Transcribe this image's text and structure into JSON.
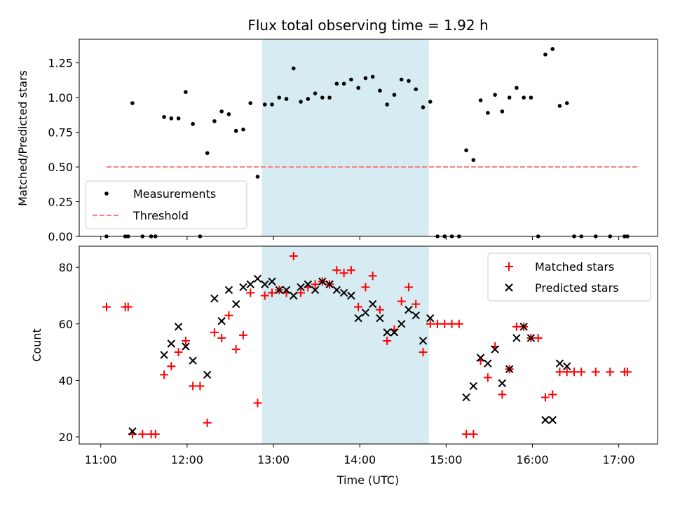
{
  "chart_data": [
    {
      "type": "scatter",
      "title": "Flux total observing time = 1.92 h",
      "xlabel": "",
      "ylabel": "Matched/Predicted stars",
      "ylim": [
        0,
        1.42
      ],
      "yticks": [
        0.0,
        0.25,
        0.5,
        0.75,
        1.0,
        1.25
      ],
      "ytick_labels": [
        "0.00",
        "0.25",
        "0.50",
        "0.75",
        "1.00",
        "1.25"
      ],
      "xlim": [
        "10:45",
        "17:27"
      ],
      "highlight_span": [
        "12:52",
        "14:48"
      ],
      "highlight_color": "#add8e6",
      "legend": {
        "position": "lower-left",
        "entries": [
          {
            "label": "Measurements",
            "marker": "dot",
            "color": "#000000"
          },
          {
            "label": "Threshold",
            "marker": "dashed-line",
            "color": "#ff7f7f"
          }
        ]
      },
      "threshold": {
        "name": "Threshold",
        "x": [
          "11:04",
          "17:13"
        ],
        "y": 0.5,
        "color": "#ff7f7f"
      },
      "series": [
        {
          "name": "Measurements",
          "color": "#000000",
          "points": [
            [
              "11:04",
              0.0
            ],
            [
              "11:17",
              0.0
            ],
            [
              "11:19",
              0.0
            ],
            [
              "11:22",
              0.96
            ],
            [
              "11:29",
              0.0
            ],
            [
              "11:35",
              0.0
            ],
            [
              "11:38",
              0.0
            ],
            [
              "11:44",
              0.86
            ],
            [
              "11:49",
              0.85
            ],
            [
              "11:54",
              0.85
            ],
            [
              "11:59",
              1.04
            ],
            [
              "12:04",
              0.81
            ],
            [
              "12:09",
              0.0
            ],
            [
              "12:14",
              0.6
            ],
            [
              "12:19",
              0.83
            ],
            [
              "12:24",
              0.9
            ],
            [
              "12:29",
              0.88
            ],
            [
              "12:34",
              0.76
            ],
            [
              "12:39",
              0.77
            ],
            [
              "12:44",
              0.96
            ],
            [
              "12:49",
              0.43
            ],
            [
              "12:54",
              0.95
            ],
            [
              "12:59",
              0.95
            ],
            [
              "13:04",
              1.0
            ],
            [
              "13:09",
              0.99
            ],
            [
              "13:14",
              1.21
            ],
            [
              "13:19",
              0.97
            ],
            [
              "13:24",
              0.99
            ],
            [
              "13:29",
              1.03
            ],
            [
              "13:34",
              1.0
            ],
            [
              "13:39",
              1.0
            ],
            [
              "13:44",
              1.1
            ],
            [
              "13:49",
              1.1
            ],
            [
              "13:54",
              1.13
            ],
            [
              "13:59",
              1.07
            ],
            [
              "14:04",
              1.14
            ],
            [
              "14:09",
              1.15
            ],
            [
              "14:14",
              1.05
            ],
            [
              "14:19",
              0.95
            ],
            [
              "14:24",
              1.02
            ],
            [
              "14:29",
              1.13
            ],
            [
              "14:34",
              1.12
            ],
            [
              "14:39",
              1.06
            ],
            [
              "14:44",
              0.93
            ],
            [
              "14:49",
              0.97
            ],
            [
              "14:54",
              0.0
            ],
            [
              "14:59",
              0.0
            ],
            [
              "15:04",
              0.0
            ],
            [
              "15:09",
              0.0
            ],
            [
              "15:14",
              0.62
            ],
            [
              "15:19",
              0.55
            ],
            [
              "15:24",
              0.98
            ],
            [
              "15:29",
              0.89
            ],
            [
              "15:34",
              1.02
            ],
            [
              "15:39",
              0.9
            ],
            [
              "15:44",
              1.0
            ],
            [
              "15:49",
              1.07
            ],
            [
              "15:54",
              1.0
            ],
            [
              "15:59",
              1.0
            ],
            [
              "16:04",
              0.0
            ],
            [
              "16:09",
              1.31
            ],
            [
              "16:14",
              1.35
            ],
            [
              "16:19",
              0.94
            ],
            [
              "16:24",
              0.96
            ],
            [
              "16:29",
              0.0
            ],
            [
              "16:34",
              0.0
            ],
            [
              "16:44",
              0.0
            ],
            [
              "16:54",
              0.0
            ],
            [
              "17:04",
              0.0
            ],
            [
              "17:06",
              0.0
            ]
          ]
        }
      ]
    },
    {
      "type": "scatter",
      "title": "",
      "xlabel": "Time (UTC)",
      "ylabel": "Count",
      "ylim": [
        17.5,
        87.5
      ],
      "yticks": [
        20,
        40,
        60,
        80
      ],
      "ytick_labels": [
        "20",
        "40",
        "60",
        "80"
      ],
      "xlim": [
        "10:45",
        "17:27"
      ],
      "xticks": [
        "11:00",
        "12:00",
        "13:00",
        "14:00",
        "15:00",
        "16:00",
        "17:00"
      ],
      "highlight_span": [
        "12:52",
        "14:48"
      ],
      "highlight_color": "#add8e6",
      "legend": {
        "position": "top-right",
        "entries": [
          {
            "label": "Matched stars",
            "marker": "plus",
            "color": "#ff0000"
          },
          {
            "label": "Predicted stars",
            "marker": "x",
            "color": "#000000"
          }
        ]
      },
      "series": [
        {
          "name": "Matched stars",
          "marker": "plus",
          "color": "#ff0000",
          "points": [
            [
              "11:04",
              66
            ],
            [
              "11:17",
              66
            ],
            [
              "11:19",
              66
            ],
            [
              "11:22",
              21
            ],
            [
              "11:29",
              21
            ],
            [
              "11:35",
              21
            ],
            [
              "11:38",
              21
            ],
            [
              "11:44",
              42
            ],
            [
              "11:49",
              45
            ],
            [
              "11:54",
              50
            ],
            [
              "11:59",
              54
            ],
            [
              "12:04",
              38
            ],
            [
              "12:09",
              38
            ],
            [
              "12:14",
              25
            ],
            [
              "12:19",
              57
            ],
            [
              "12:24",
              55
            ],
            [
              "12:29",
              63
            ],
            [
              "12:34",
              51
            ],
            [
              "12:39",
              56
            ],
            [
              "12:44",
              71
            ],
            [
              "12:49",
              32
            ],
            [
              "12:54",
              70
            ],
            [
              "12:59",
              71
            ],
            [
              "13:04",
              72
            ],
            [
              "13:09",
              71
            ],
            [
              "13:14",
              84
            ],
            [
              "13:19",
              71
            ],
            [
              "13:24",
              73
            ],
            [
              "13:29",
              74
            ],
            [
              "13:34",
              75
            ],
            [
              "13:39",
              74
            ],
            [
              "13:44",
              79
            ],
            [
              "13:49",
              78
            ],
            [
              "13:54",
              79
            ],
            [
              "13:59",
              66
            ],
            [
              "14:04",
              73
            ],
            [
              "14:09",
              77
            ],
            [
              "14:14",
              65
            ],
            [
              "14:19",
              54
            ],
            [
              "14:24",
              58
            ],
            [
              "14:29",
              68
            ],
            [
              "14:34",
              73
            ],
            [
              "14:39",
              67
            ],
            [
              "14:44",
              50
            ],
            [
              "14:49",
              60
            ],
            [
              "14:54",
              60
            ],
            [
              "14:59",
              60
            ],
            [
              "15:04",
              60
            ],
            [
              "15:09",
              60
            ],
            [
              "15:14",
              21
            ],
            [
              "15:19",
              21
            ],
            [
              "15:24",
              47
            ],
            [
              "15:29",
              41
            ],
            [
              "15:34",
              52
            ],
            [
              "15:39",
              35
            ],
            [
              "15:44",
              44
            ],
            [
              "15:49",
              59
            ],
            [
              "15:54",
              59
            ],
            [
              "15:59",
              55
            ],
            [
              "16:04",
              55
            ],
            [
              "16:09",
              34
            ],
            [
              "16:14",
              35
            ],
            [
              "16:19",
              43
            ],
            [
              "16:24",
              43
            ],
            [
              "16:29",
              43
            ],
            [
              "16:34",
              43
            ],
            [
              "16:44",
              43
            ],
            [
              "16:54",
              43
            ],
            [
              "17:04",
              43
            ],
            [
              "17:06",
              43
            ]
          ]
        },
        {
          "name": "Predicted stars",
          "marker": "x",
          "color": "#000000",
          "points": [
            [
              "11:22",
              22
            ],
            [
              "11:44",
              49
            ],
            [
              "11:49",
              53
            ],
            [
              "11:54",
              59
            ],
            [
              "11:59",
              52
            ],
            [
              "12:04",
              47
            ],
            [
              "12:14",
              42
            ],
            [
              "12:19",
              69
            ],
            [
              "12:24",
              61
            ],
            [
              "12:29",
              72
            ],
            [
              "12:34",
              67
            ],
            [
              "12:39",
              73
            ],
            [
              "12:44",
              74
            ],
            [
              "12:49",
              76
            ],
            [
              "12:54",
              74
            ],
            [
              "12:59",
              75
            ],
            [
              "13:04",
              72
            ],
            [
              "13:09",
              72
            ],
            [
              "13:14",
              70
            ],
            [
              "13:19",
              73
            ],
            [
              "13:24",
              74
            ],
            [
              "13:29",
              72
            ],
            [
              "13:34",
              75
            ],
            [
              "13:39",
              74
            ],
            [
              "13:44",
              72
            ],
            [
              "13:49",
              71
            ],
            [
              "13:54",
              70
            ],
            [
              "13:59",
              62
            ],
            [
              "14:04",
              64
            ],
            [
              "14:09",
              67
            ],
            [
              "14:14",
              62
            ],
            [
              "14:19",
              57
            ],
            [
              "14:24",
              57
            ],
            [
              "14:29",
              60
            ],
            [
              "14:34",
              65
            ],
            [
              "14:39",
              63
            ],
            [
              "14:44",
              54
            ],
            [
              "14:49",
              62
            ],
            [
              "15:14",
              34
            ],
            [
              "15:19",
              38
            ],
            [
              "15:24",
              48
            ],
            [
              "15:29",
              46
            ],
            [
              "15:34",
              51
            ],
            [
              "15:39",
              39
            ],
            [
              "15:44",
              44
            ],
            [
              "15:49",
              55
            ],
            [
              "15:54",
              59
            ],
            [
              "15:59",
              55
            ],
            [
              "16:09",
              26
            ],
            [
              "16:14",
              26
            ],
            [
              "16:19",
              46
            ],
            [
              "16:24",
              45
            ]
          ]
        }
      ]
    }
  ]
}
